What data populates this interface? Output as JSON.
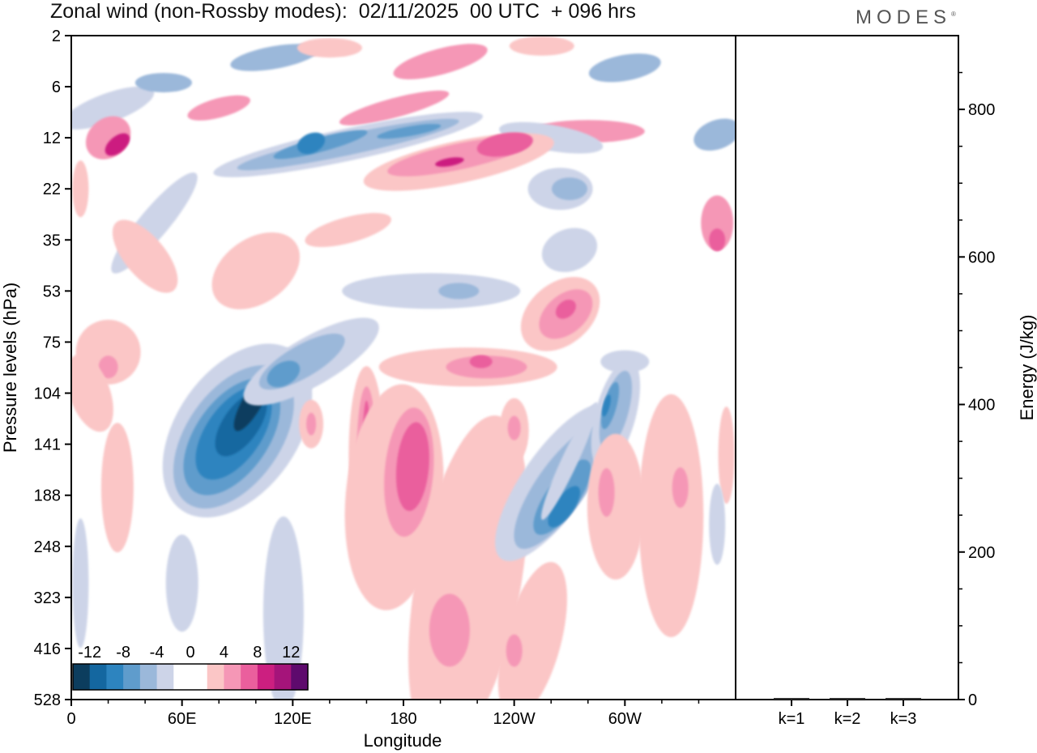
{
  "header": {
    "title": "Zonal wind (non-Rossby modes):  02/11/2025  00 UTC  + 096 hrs",
    "brand": "MODES"
  },
  "chart_data": [
    {
      "type": "heatmap",
      "title": "Zonal wind (non-Rossby modes):  02/11/2025  00 UTC  + 096 hrs",
      "xlabel": "Longitude",
      "ylabel": "Pressure levels (hPa)",
      "x_ticks": [
        "0",
        "60E",
        "120E",
        "180",
        "120W",
        "60W"
      ],
      "y_ticks": [
        "2",
        "6",
        "12",
        "22",
        "35",
        "53",
        "75",
        "104",
        "141",
        "188",
        "248",
        "323",
        "416",
        "528"
      ],
      "colorbar_labels": [
        "-12",
        "-8",
        "-4",
        "0",
        "4",
        "8",
        "12"
      ],
      "colorbar_colors": [
        "#0c3d5e",
        "#1467a0",
        "#2d84bf",
        "#5f9ccc",
        "#9bb8da",
        "#cdd4e8",
        "#ffffff",
        "#ffffff",
        "#fbc6c6",
        "#f597b6",
        "#ea5f9d",
        "#cc1f80",
        "#a5147a",
        "#5e0a6d"
      ],
      "features": [
        {
          "sign": "negative",
          "level": 4,
          "lon": [
            65,
            112
          ],
          "plev": [
            75,
            248
          ],
          "note": "strong westward jet tilted upward toward east"
        },
        {
          "sign": "negative",
          "level": 2,
          "lon": [
            105,
            160
          ],
          "plev": [
            53,
            104
          ]
        },
        {
          "sign": "positive",
          "level": 2,
          "lon": [
            145,
            185
          ],
          "plev": [
            104,
            248
          ]
        },
        {
          "sign": "positive",
          "level": 1,
          "lon": [
            165,
            265
          ],
          "plev": [
            141,
            528
          ]
        },
        {
          "sign": "negative",
          "level": 3,
          "lon": [
            250,
            280
          ],
          "plev": [
            104,
            248
          ]
        },
        {
          "sign": "positive",
          "level": 2,
          "lon": [
            175,
            250
          ],
          "plev": [
            12,
            22
          ]
        },
        {
          "sign": "negative",
          "level": 2,
          "lon": [
            95,
            215
          ],
          "plev": [
            10,
            22
          ]
        },
        {
          "sign": "positive",
          "level": 2,
          "lon": [
            255,
            300
          ],
          "plev": [
            53,
            75
          ]
        }
      ]
    },
    {
      "type": "bar",
      "categories": [
        "k=1",
        "k=2",
        "k=3"
      ],
      "values": [
        2,
        1.5,
        1
      ],
      "ylabel": "Energy (J/kg)",
      "ylim": [
        0,
        900
      ],
      "y_ticks": [
        0,
        200,
        400,
        600,
        800
      ]
    }
  ]
}
